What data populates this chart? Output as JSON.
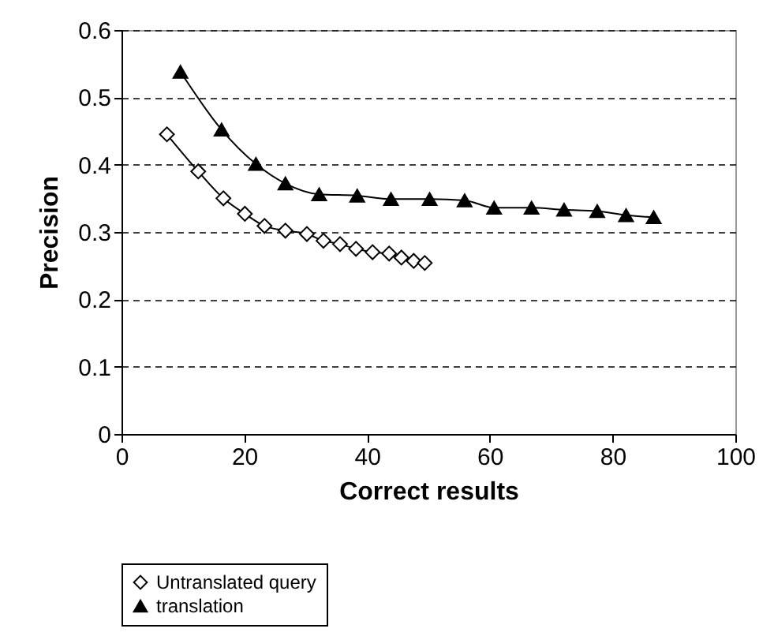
{
  "chart_data": {
    "type": "line",
    "xlabel": "Correct results",
    "ylabel": "Precision",
    "xlim": [
      0,
      100
    ],
    "xticks": [
      0,
      20,
      40,
      60,
      80,
      100
    ],
    "ylim": [
      0,
      0.6
    ],
    "yticks": [
      0,
      0.1,
      0.2,
      0.3,
      0.4,
      0.5,
      0.6
    ],
    "grid": "y",
    "legend": "bottom",
    "line_style": "solid",
    "series": [
      {
        "name": "Untranslated query",
        "color": "#000000",
        "marker": "diamond",
        "x": [
          7.4,
          12.5,
          16.6,
          20.1,
          23.3,
          26.7,
          30.2,
          32.9,
          35.6,
          38.2,
          40.9,
          43.6,
          45.6,
          47.6,
          49.4
        ],
        "values": [
          0.445,
          0.39,
          0.35,
          0.327,
          0.309,
          0.302,
          0.297,
          0.287,
          0.282,
          0.275,
          0.27,
          0.268,
          0.262,
          0.257,
          0.254
        ]
      },
      {
        "name": "translation",
        "color": "#000000",
        "marker": "triangle",
        "x": [
          9.6,
          16.3,
          21.9,
          26.7,
          32.2,
          38.4,
          43.9,
          50.2,
          55.9,
          60.7,
          66.8,
          72.1,
          77.5,
          82.2,
          86.7
        ],
        "values": [
          0.538,
          0.452,
          0.401,
          0.372,
          0.356,
          0.354,
          0.349,
          0.349,
          0.347,
          0.336,
          0.336,
          0.333,
          0.331,
          0.325,
          0.322
        ]
      }
    ]
  }
}
